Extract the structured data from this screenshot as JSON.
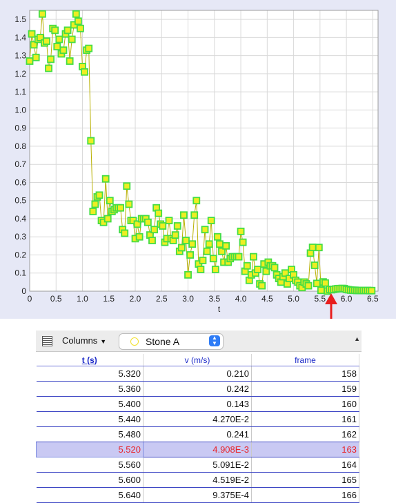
{
  "chart_data": {
    "type": "scatter",
    "xlabel": "t",
    "ylabel": "",
    "xlim": [
      0,
      6.6
    ],
    "ylim": [
      0,
      1.55
    ],
    "x_ticks": [
      "0",
      "0.5",
      "1.0",
      "1.5",
      "2.0",
      "2.5",
      "3.0",
      "3.5",
      "4.0",
      "4.5",
      "5.0",
      "5.5",
      "6.0",
      "6.5"
    ],
    "y_ticks": [
      "0",
      "0.1",
      "0.2",
      "0.3",
      "0.4",
      "0.5",
      "0.6",
      "0.7",
      "0.8",
      "0.9",
      "1.0",
      "1.1",
      "1.2",
      "1.3",
      "1.4",
      "1.5"
    ],
    "grid": true,
    "marker_fill": "#eeee22",
    "marker_edge": "#44dd44",
    "line_color": "#b8b000",
    "series": [
      {
        "values": [
          [
            0.0,
            1.27
          ],
          [
            0.04,
            1.42
          ],
          [
            0.08,
            1.36
          ],
          [
            0.12,
            1.29
          ],
          [
            0.16,
            1.39
          ],
          [
            0.2,
            1.4
          ],
          [
            0.24,
            1.53
          ],
          [
            0.28,
            1.37
          ],
          [
            0.32,
            1.38
          ],
          [
            0.36,
            1.23
          ],
          [
            0.4,
            1.28
          ],
          [
            0.44,
            1.45
          ],
          [
            0.48,
            1.44
          ],
          [
            0.52,
            1.35
          ],
          [
            0.56,
            1.39
          ],
          [
            0.6,
            1.31
          ],
          [
            0.64,
            1.33
          ],
          [
            0.68,
            1.42
          ],
          [
            0.72,
            1.44
          ],
          [
            0.76,
            1.27
          ],
          [
            0.8,
            1.39
          ],
          [
            0.84,
            1.47
          ],
          [
            0.88,
            1.53
          ],
          [
            0.92,
            1.49
          ],
          [
            0.96,
            1.45
          ],
          [
            1.0,
            1.24
          ],
          [
            1.04,
            1.21
          ],
          [
            1.08,
            1.33
          ],
          [
            1.12,
            1.34
          ],
          [
            1.16,
            0.83
          ],
          [
            1.2,
            0.44
          ],
          [
            1.24,
            0.48
          ],
          [
            1.28,
            0.52
          ],
          [
            1.32,
            0.53
          ],
          [
            1.36,
            0.39
          ],
          [
            1.4,
            0.38
          ],
          [
            1.44,
            0.62
          ],
          [
            1.48,
            0.4
          ],
          [
            1.52,
            0.5
          ],
          [
            1.56,
            0.44
          ],
          [
            1.6,
            0.45
          ],
          [
            1.64,
            0.46
          ],
          [
            1.68,
            0.46
          ],
          [
            1.72,
            0.46
          ],
          [
            1.76,
            0.34
          ],
          [
            1.8,
            0.32
          ],
          [
            1.84,
            0.58
          ],
          [
            1.88,
            0.48
          ],
          [
            1.92,
            0.39
          ],
          [
            1.96,
            0.39
          ],
          [
            2.0,
            0.29
          ],
          [
            2.04,
            0.37
          ],
          [
            2.08,
            0.3
          ],
          [
            2.12,
            0.4
          ],
          [
            2.16,
            0.4
          ],
          [
            2.2,
            0.4
          ],
          [
            2.24,
            0.38
          ],
          [
            2.28,
            0.31
          ],
          [
            2.32,
            0.28
          ],
          [
            2.36,
            0.34
          ],
          [
            2.4,
            0.46
          ],
          [
            2.44,
            0.43
          ],
          [
            2.48,
            0.37
          ],
          [
            2.52,
            0.36
          ],
          [
            2.56,
            0.27
          ],
          [
            2.6,
            0.29
          ],
          [
            2.64,
            0.39
          ],
          [
            2.68,
            0.29
          ],
          [
            2.72,
            0.28
          ],
          [
            2.76,
            0.31
          ],
          [
            2.8,
            0.36
          ],
          [
            2.84,
            0.22
          ],
          [
            2.88,
            0.24
          ],
          [
            2.92,
            0.42
          ],
          [
            2.96,
            0.28
          ],
          [
            3.0,
            0.09
          ],
          [
            3.04,
            0.2
          ],
          [
            3.08,
            0.26
          ],
          [
            3.12,
            0.42
          ],
          [
            3.16,
            0.5
          ],
          [
            3.2,
            0.15
          ],
          [
            3.24,
            0.12
          ],
          [
            3.28,
            0.17
          ],
          [
            3.32,
            0.34
          ],
          [
            3.36,
            0.22
          ],
          [
            3.4,
            0.26
          ],
          [
            3.44,
            0.39
          ],
          [
            3.48,
            0.18
          ],
          [
            3.52,
            0.12
          ],
          [
            3.56,
            0.3
          ],
          [
            3.6,
            0.26
          ],
          [
            3.64,
            0.22
          ],
          [
            3.68,
            0.16
          ],
          [
            3.72,
            0.25
          ],
          [
            3.76,
            0.16
          ],
          [
            3.8,
            0.18
          ],
          [
            3.84,
            0.19
          ],
          [
            3.88,
            0.19
          ],
          [
            3.92,
            0.19
          ],
          [
            3.96,
            0.19
          ],
          [
            4.0,
            0.33
          ],
          [
            4.04,
            0.27
          ],
          [
            4.08,
            0.11
          ],
          [
            4.12,
            0.14
          ],
          [
            4.16,
            0.06
          ],
          [
            4.2,
            0.09
          ],
          [
            4.24,
            0.19
          ],
          [
            4.28,
            0.1
          ],
          [
            4.32,
            0.12
          ],
          [
            4.36,
            0.04
          ],
          [
            4.4,
            0.03
          ],
          [
            4.44,
            0.15
          ],
          [
            4.48,
            0.11
          ],
          [
            4.52,
            0.16
          ],
          [
            4.56,
            0.14
          ],
          [
            4.6,
            0.14
          ],
          [
            4.64,
            0.13
          ],
          [
            4.68,
            0.09
          ],
          [
            4.72,
            0.07
          ],
          [
            4.76,
            0.05
          ],
          [
            4.8,
            0.08
          ],
          [
            4.84,
            0.1
          ],
          [
            4.88,
            0.04
          ],
          [
            4.92,
            0.07
          ],
          [
            4.96,
            0.12
          ],
          [
            5.0,
            0.09
          ],
          [
            5.04,
            0.06
          ],
          [
            5.08,
            0.05
          ],
          [
            5.12,
            0.03
          ],
          [
            5.16,
            0.02
          ],
          [
            5.2,
            0.05
          ],
          [
            5.24,
            0.04
          ],
          [
            5.28,
            0.03
          ],
          [
            5.32,
            0.21
          ],
          [
            5.36,
            0.242
          ],
          [
            5.4,
            0.143
          ],
          [
            5.44,
            0.0427
          ],
          [
            5.48,
            0.241
          ],
          [
            5.52,
            0.004908
          ],
          [
            5.56,
            0.05091
          ],
          [
            5.6,
            0.04519
          ],
          [
            5.64,
            0.0009375
          ],
          [
            5.68,
            0.01
          ],
          [
            5.72,
            0.008
          ],
          [
            5.76,
            0.01
          ],
          [
            5.8,
            0.012
          ],
          [
            5.84,
            0.014
          ],
          [
            5.88,
            0.014
          ],
          [
            5.92,
            0.015
          ],
          [
            5.96,
            0.014
          ],
          [
            6.0,
            0.01
          ],
          [
            6.04,
            0.008
          ],
          [
            6.08,
            0.006
          ],
          [
            6.12,
            0.005
          ],
          [
            6.16,
            0.005
          ],
          [
            6.2,
            0.004
          ],
          [
            6.24,
            0.004
          ],
          [
            6.28,
            0.004
          ],
          [
            6.32,
            0.004
          ],
          [
            6.36,
            0.004
          ],
          [
            6.4,
            0.004
          ],
          [
            6.44,
            0.003
          ],
          [
            6.48,
            0.003
          ]
        ]
      }
    ]
  },
  "annotation_arrow": {
    "color": "#e81e1e"
  },
  "toolbar": {
    "columns_label": "Columns",
    "track_name": "Stone A",
    "track_color": "#f2e02a"
  },
  "table": {
    "headers": [
      "t (s)",
      "v (m/s)",
      "frame"
    ],
    "selected_row": 5,
    "rows": [
      [
        "5.320",
        "0.210",
        "158"
      ],
      [
        "5.360",
        "0.242",
        "159"
      ],
      [
        "5.400",
        "0.143",
        "160"
      ],
      [
        "5.440",
        "4.270E-2",
        "161"
      ],
      [
        "5.480",
        "0.241",
        "162"
      ],
      [
        "5.520",
        "4.908E-3",
        "163"
      ],
      [
        "5.560",
        "5.091E-2",
        "164"
      ],
      [
        "5.600",
        "4.519E-2",
        "165"
      ],
      [
        "5.640",
        "9.375E-4",
        "166"
      ]
    ]
  }
}
